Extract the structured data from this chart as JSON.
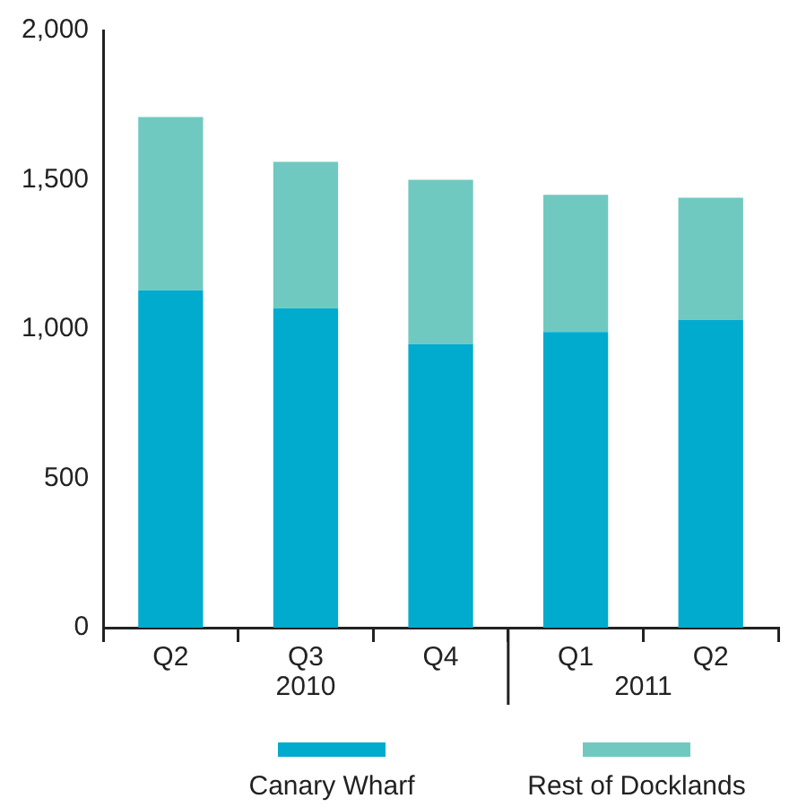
{
  "chart_data": {
    "type": "bar",
    "stacked": true,
    "categories": [
      "Q2",
      "Q3",
      "Q4",
      "Q1",
      "Q2"
    ],
    "series": [
      {
        "name": "Canary Wharf",
        "color": "#00abcd",
        "values": [
          1130,
          1070,
          950,
          990,
          1030
        ]
      },
      {
        "name": "Rest of Docklands",
        "color": "#70c9c0",
        "values": [
          580,
          490,
          550,
          460,
          410
        ]
      }
    ],
    "ylim": [
      0,
      2000
    ],
    "yticks": [
      0,
      500,
      {
        "value": 1000,
        "label": "1,000"
      },
      {
        "value": 1500,
        "label": "1,500"
      },
      {
        "value": 2000,
        "label": "2,000"
      }
    ],
    "annotations": [
      "2010",
      "2011"
    ],
    "grid": false,
    "legend": "bottom"
  }
}
